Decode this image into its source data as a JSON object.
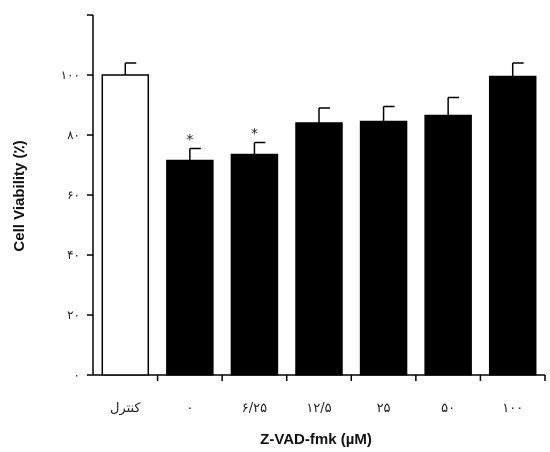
{
  "chart_data": {
    "type": "bar",
    "categories": [
      "کنترل",
      "۰",
      "۶/۲۵",
      "۱۲/۵",
      "۲۵",
      "۵۰",
      "۱۰۰"
    ],
    "values": [
      100,
      71.5,
      73.5,
      84,
      84.5,
      86.5,
      99.5
    ],
    "errors": [
      4,
      4,
      4,
      5,
      5,
      6,
      4.5
    ],
    "significance": [
      "",
      "*",
      "*",
      "",
      "",
      "",
      ""
    ],
    "bar_fills": [
      "#ffffff",
      "#000000",
      "#000000",
      "#000000",
      "#000000",
      "#000000",
      "#000000"
    ],
    "xlabel": "Z-VAD-fmk (µM)",
    "ylabel": "Cell Viability (٪)",
    "ylim": [
      0,
      120
    ],
    "yticks": [
      {
        "value": 0,
        "label": "۰"
      },
      {
        "value": 20,
        "label": "۲۰"
      },
      {
        "value": 40,
        "label": "۴۰"
      },
      {
        "value": 60,
        "label": "۶۰"
      },
      {
        "value": 80,
        "label": "۸۰"
      },
      {
        "value": 100,
        "label": "۱۰۰"
      }
    ],
    "grid": false
  }
}
